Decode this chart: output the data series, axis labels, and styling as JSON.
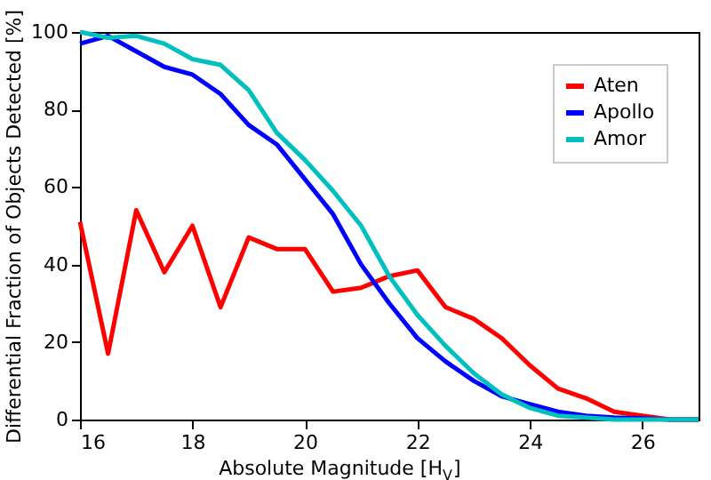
{
  "chart_data": {
    "type": "line",
    "xlabel": "Absolute Magnitude [H$_{V}$]",
    "ylabel": "Differential Fraction of Objects Detected [%]",
    "x": [
      16,
      16.5,
      17,
      17.5,
      18,
      18.5,
      19,
      19.5,
      20,
      20.5,
      21,
      21.5,
      22,
      22.5,
      23,
      23.5,
      24,
      24.5,
      25,
      25.5,
      26,
      26.5,
      27
    ],
    "series": [
      {
        "name": "Aten",
        "color": "#ff0000",
        "values": [
          51,
          17,
          54,
          38,
          50,
          29,
          47,
          44,
          44,
          33,
          34,
          37,
          38.5,
          29,
          26,
          21,
          14,
          8,
          5.5,
          2,
          1,
          0,
          0
        ]
      },
      {
        "name": "Apollo",
        "color": "#0000ff",
        "values": [
          97,
          99,
          95,
          91,
          89,
          84,
          76,
          71,
          62,
          53,
          40,
          30,
          21,
          15,
          10,
          6,
          4,
          2,
          1,
          0.5,
          0.3,
          0,
          0
        ]
      },
      {
        "name": "Amor",
        "color": "#00bfbf",
        "values": [
          100,
          98.5,
          99,
          97,
          93,
          91.5,
          85,
          74,
          67,
          59,
          50,
          37,
          27,
          19,
          12,
          6.5,
          3,
          1,
          0.5,
          0,
          0,
          0,
          0
        ]
      }
    ],
    "xlim": [
      16,
      27
    ],
    "xticks": [
      16,
      18,
      20,
      22,
      24,
      26
    ],
    "ylim": [
      0,
      100
    ],
    "yticks": [
      0,
      20,
      40,
      60,
      80,
      100
    ],
    "grid": false,
    "legend": "top right",
    "marker": "none",
    "line_style": "solid"
  }
}
